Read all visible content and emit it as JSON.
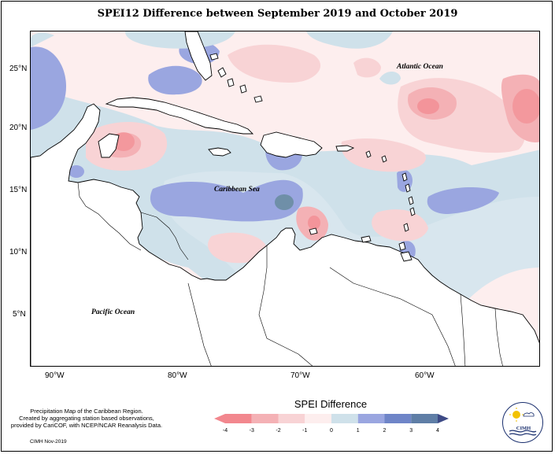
{
  "title": "SPEI12 Difference between September 2019 and October 2019",
  "map": {
    "lat_ticks": [
      "25°N",
      "20°N",
      "15°N",
      "10°N",
      "5°N"
    ],
    "lon_ticks": [
      "90°W",
      "80°W",
      "70°W",
      "60°W"
    ],
    "labels": {
      "atlantic": "Atlantic Ocean",
      "caribbean": "Caribbean Sea",
      "pacific": "Pacific Ocean"
    }
  },
  "legend": {
    "title": "SPEI Difference",
    "ticks": [
      "-4",
      "-3",
      "-2",
      "-1",
      "0",
      "1",
      "2",
      "3",
      "4"
    ],
    "colors": [
      "#f2878e",
      "#f4b1b5",
      "#f8d3d5",
      "#fdeeee",
      "#cfe1ea",
      "#9aa6e0",
      "#6f85c8",
      "#5f7ea6",
      "#3d4a86"
    ]
  },
  "note": {
    "line1": "Precipitation Map of the Caribbean Region.",
    "line2": "Created by aggregating station based observations,",
    "line3": "provided by CariCOF, with NCEP/NCAR Reanalysis Data."
  },
  "credit": "CIMH Nov-2019",
  "logo_text": "CIMH"
}
